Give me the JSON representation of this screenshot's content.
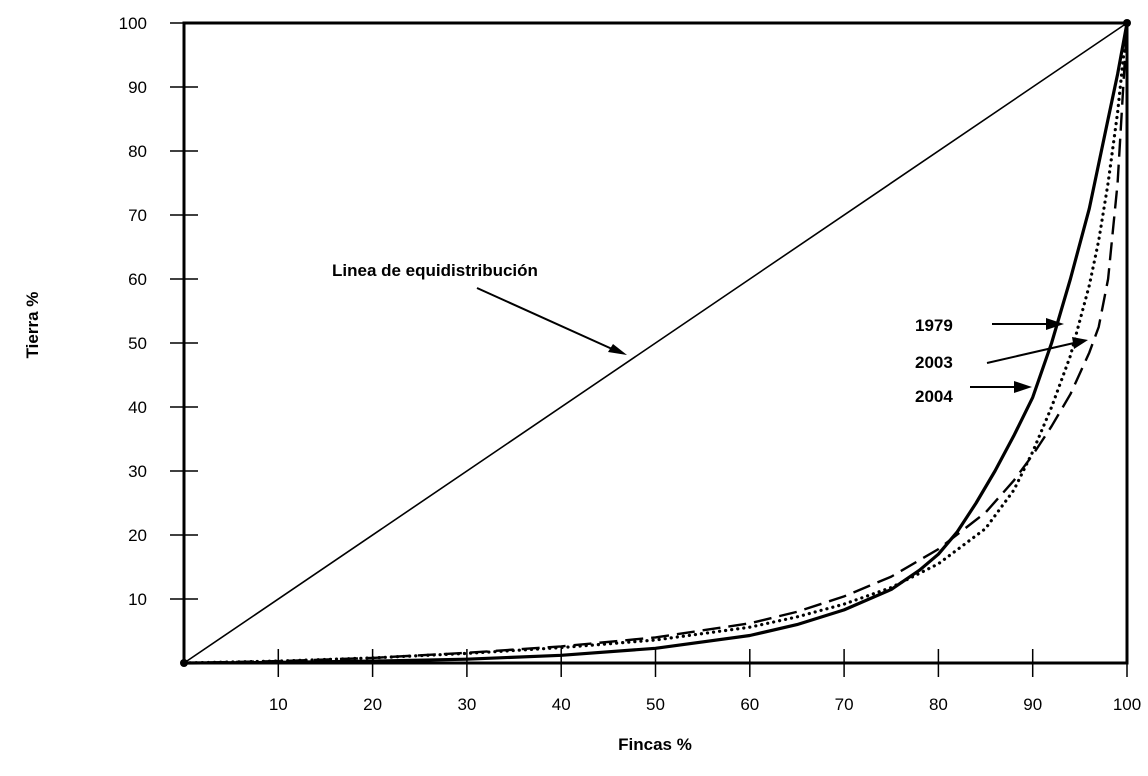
{
  "chart_data": {
    "type": "line",
    "xlabel": "Fincas %",
    "ylabel": "Tierra %",
    "xlim": [
      0,
      100
    ],
    "ylim": [
      0,
      100
    ],
    "x_ticks": [
      "10",
      "20",
      "30",
      "40",
      "50",
      "60",
      "70",
      "80",
      "90",
      "100"
    ],
    "y_ticks": [
      "10",
      "20",
      "30",
      "40",
      "50",
      "60",
      "70",
      "80",
      "90",
      "100"
    ],
    "grid": false,
    "annotations": {
      "equality_label": "Linea de equidistribución",
      "year_labels": [
        "1979",
        "2003",
        "2004"
      ]
    },
    "series": [
      {
        "style": "solid-thin",
        "x": [
          0,
          100
        ],
        "y": [
          0,
          100
        ]
      },
      {
        "name": "1979",
        "style": "dotted",
        "x": [
          0,
          10,
          20,
          30,
          40,
          50,
          60,
          65,
          70,
          75,
          80,
          85,
          88,
          90,
          92,
          94,
          96,
          97,
          98,
          99,
          100
        ],
        "y": [
          0,
          0.3,
          0.8,
          1.5,
          2.4,
          3.6,
          5.6,
          7.2,
          9.2,
          11.8,
          15.5,
          21,
          27,
          33,
          40,
          48,
          59,
          66,
          75,
          86,
          100
        ]
      },
      {
        "name": "2003",
        "style": "dashed",
        "x": [
          0,
          10,
          20,
          30,
          40,
          50,
          60,
          65,
          70,
          75,
          80,
          85,
          88,
          90,
          92,
          94,
          96,
          97,
          98,
          99,
          100
        ],
        "y": [
          0,
          0.3,
          0.8,
          1.6,
          2.6,
          4,
          6.2,
          8,
          10.4,
          13.5,
          17.8,
          23.5,
          28.5,
          32.5,
          37,
          42,
          48.5,
          52.5,
          60,
          75,
          100
        ]
      },
      {
        "name": "2004",
        "style": "solid",
        "x": [
          0,
          10,
          20,
          30,
          40,
          50,
          60,
          65,
          70,
          75,
          78,
          80,
          82,
          84,
          86,
          88,
          90,
          92,
          94,
          96,
          98,
          99,
          100
        ],
        "y": [
          0,
          0.1,
          0.3,
          0.6,
          1.2,
          2.3,
          4.3,
          6,
          8.3,
          11.5,
          14.5,
          17,
          20.5,
          25,
          30,
          35.5,
          41.5,
          50,
          60,
          71,
          85,
          92,
          100
        ]
      }
    ]
  }
}
